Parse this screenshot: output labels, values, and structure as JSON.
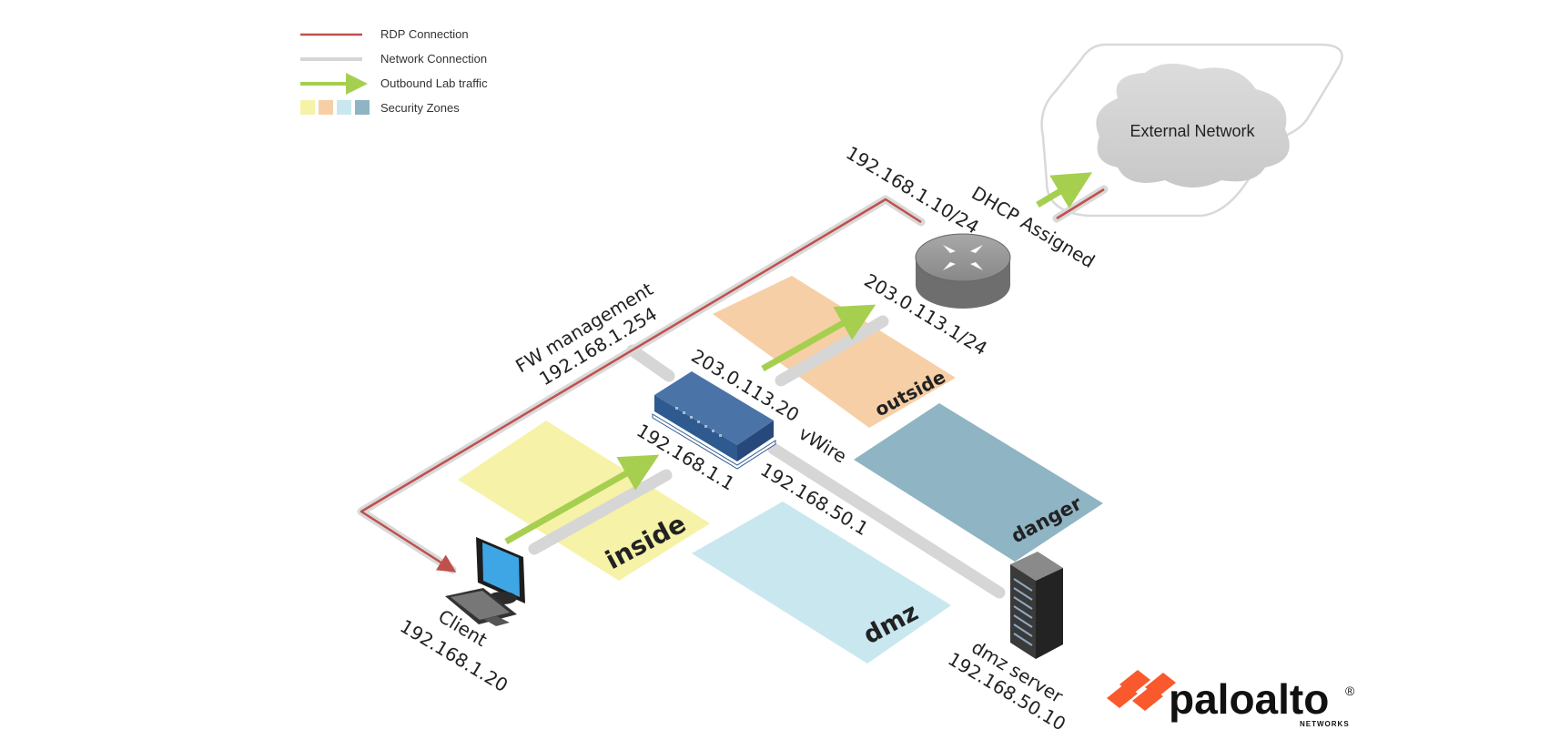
{
  "legend": {
    "rdp": "RDP Connection",
    "network": "Network Connection",
    "outbound": "Outbound Lab traffic",
    "zones": "Security Zones"
  },
  "cloud_label": "External Network",
  "labels": {
    "router_mgmt_ip": "192.168.1.10/24",
    "dhcp": "DHCP Assigned",
    "router_out_ip": "203.0.113.1/24",
    "fw_mgmt_title": "FW management",
    "fw_mgmt_ip": "192.168.1.254",
    "fw_outside_ip": "203.0.113.20",
    "fw_inside_ip": "192.168.1.1",
    "vwire": "vWire",
    "fw_dmz_ip": "192.168.50.1",
    "client_name": "Client",
    "client_ip": "192.168.1.20",
    "server_name": "dmz server",
    "server_ip": "192.168.50.10"
  },
  "zones": {
    "inside": "inside",
    "outside": "outside",
    "danger": "danger",
    "dmz": "dmz"
  },
  "brand": {
    "name": "paloalto",
    "sub": "NETWORKS",
    "reg": "®"
  },
  "colors": {
    "rdp": "#c0504d",
    "network": "#d6d6d6",
    "outbound": "#a6cf4f",
    "zone_inside": "#f6f2a8",
    "zone_outside": "#f7cfa6",
    "zone_dmz": "#c9e7ef",
    "zone_danger": "#8fb4c4",
    "brand": "#fa582d"
  }
}
